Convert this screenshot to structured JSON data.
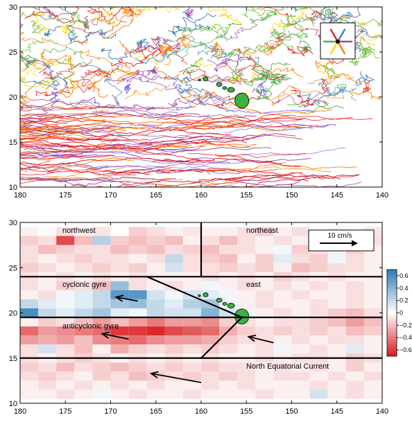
{
  "chart_data": [
    {
      "type": "line",
      "title": "",
      "xlabel": "",
      "ylabel": "",
      "xlim": [
        180,
        140
      ],
      "ylim": [
        10,
        30
      ],
      "x_ticks": [
        "180",
        "175",
        "170",
        "165",
        "160",
        "155",
        "150",
        "145",
        "140"
      ],
      "y_ticks": [
        "10",
        "15",
        "20",
        "25",
        "30"
      ],
      "description_series": "drifter trajectories colored by direction of motion",
      "direction_legend_colors": [
        "#e41a1c",
        "#377eb8",
        "#984ea3",
        "#ff7f00",
        "#ffd700",
        "#4daf4a"
      ],
      "track_color_mix": {
        "south_of_19N": [
          "#e41a1c",
          "#e41a1c",
          "#e41a1c",
          "#984ea3",
          "#7b68ee",
          "#ff7f00"
        ],
        "central": [
          "#e41a1c",
          "#377eb8",
          "#984ea3",
          "#4daf4a",
          "#ffd700",
          "#ff7f00",
          "#7b68ee"
        ],
        "north_of_23N": [
          "#377eb8",
          "#4daf4a",
          "#ffd700",
          "#ff7f00",
          "#984ea3",
          "#e41a1c",
          "#7fbf3f"
        ]
      },
      "land_color": "#3cb043"
    },
    {
      "type": "heatmap",
      "title": "",
      "xlabel": "",
      "ylabel": "",
      "xlim": [
        180,
        140
      ],
      "ylim": [
        10,
        30
      ],
      "x_ticks": [
        "180",
        "175",
        "170",
        "165",
        "160",
        "155",
        "150",
        "145",
        "140"
      ],
      "y_ticks": [
        "10",
        "15",
        "20",
        "25",
        "30"
      ],
      "colorbar": {
        "range": [
          -0.7,
          0.7
        ],
        "ticks": [
          "0.6",
          "0.4",
          "0.2",
          "0",
          "−0.2",
          "−0.4",
          "−0.6"
        ],
        "tick_values": [
          0.6,
          0.4,
          0.2,
          0,
          -0.2,
          -0.4,
          -0.6
        ],
        "negative_color": "#d7191c",
        "positive_color": "#2c7bb6"
      },
      "x_bins": [
        180,
        178,
        176,
        174,
        172,
        170,
        168,
        166,
        164,
        162,
        160,
        158,
        156,
        154,
        152,
        150,
        148,
        146,
        144,
        142,
        140
      ],
      "y_bins": [
        29,
        28,
        27,
        26,
        25,
        24,
        23,
        22,
        21,
        20,
        19,
        18,
        17,
        16,
        15,
        14,
        13,
        12,
        11
      ],
      "values": [
        [
          -0.05,
          -0.02,
          -0.1,
          -0.05,
          -0.08,
          0.0,
          -0.15,
          -0.1,
          -0.05,
          -0.08,
          -0.05,
          -0.05,
          -0.1,
          -0.15,
          -0.05,
          -0.1,
          -0.02,
          -0.05,
          -0.02,
          -0.08
        ],
        [
          -0.15,
          -0.1,
          -0.55,
          -0.2,
          0.25,
          -0.15,
          -0.2,
          -0.15,
          -0.2,
          -0.05,
          -0.1,
          -0.2,
          -0.1,
          -0.05,
          -0.1,
          -0.05,
          -0.05,
          -0.15,
          -0.05,
          -0.1
        ],
        [
          -0.1,
          -0.2,
          -0.15,
          -0.1,
          -0.1,
          -0.2,
          -0.15,
          -0.2,
          -0.1,
          -0.15,
          -0.2,
          -0.1,
          -0.1,
          -0.05,
          0.05,
          -0.15,
          -0.1,
          -0.05,
          -0.15,
          -0.05
        ],
        [
          -0.1,
          -0.05,
          -0.1,
          -0.15,
          -0.1,
          -0.1,
          -0.05,
          -0.1,
          0.2,
          -0.1,
          -0.15,
          -0.2,
          -0.05,
          -0.15,
          0.1,
          -0.1,
          -0.15,
          0.05,
          -0.1,
          -0.05
        ],
        [
          -0.15,
          -0.1,
          -0.05,
          -0.1,
          -0.15,
          -0.1,
          -0.15,
          -0.05,
          0.15,
          -0.1,
          -0.1,
          -0.15,
          -0.1,
          -0.15,
          -0.05,
          -0.2,
          -0.15,
          -0.1,
          -0.1,
          -0.05
        ],
        [
          -0.1,
          -0.05,
          -0.1,
          -0.05,
          -0.1,
          -0.05,
          -0.1,
          -0.05,
          -0.05,
          -0.05,
          -0.1,
          -0.05,
          -0.1,
          -0.05,
          -0.15,
          -0.1,
          -0.05,
          -0.1,
          -0.05,
          -0.05
        ],
        [
          -0.1,
          -0.05,
          -0.15,
          -0.1,
          -0.2,
          0.35,
          -0.1,
          -0.05,
          -0.1,
          -0.05,
          0.05,
          -0.05,
          -0.1,
          -0.05,
          -0.1,
          -0.05,
          -0.1,
          -0.05,
          -0.1,
          -0.05
        ],
        [
          -0.05,
          -0.1,
          0.05,
          0.1,
          0.2,
          0.55,
          0.55,
          0.15,
          0.05,
          0.15,
          0.1,
          0.05,
          -0.05,
          -0.1,
          -0.05,
          -0.1,
          -0.05,
          -0.05,
          -0.1,
          -0.05
        ],
        [
          0.2,
          0.1,
          0.05,
          0.1,
          0.2,
          0.3,
          0.35,
          0.2,
          0.1,
          0.25,
          0.3,
          0.05,
          -0.05,
          -0.1,
          -0.05,
          -0.05,
          -0.1,
          -0.05,
          -0.1,
          -0.05
        ],
        [
          0.6,
          0.2,
          0.1,
          0.2,
          0.3,
          0.1,
          0.05,
          0.2,
          0.15,
          0.15,
          0.4,
          0.15,
          0.05,
          -0.05,
          -0.1,
          -0.05,
          -0.1,
          -0.15,
          -0.2,
          -0.1
        ],
        [
          -0.05,
          -0.15,
          -0.1,
          -0.2,
          -0.3,
          -0.2,
          -0.3,
          -0.4,
          -0.3,
          -0.3,
          -0.35,
          -0.15,
          -0.1,
          -0.05,
          -0.1,
          -0.1,
          -0.15,
          -0.2,
          -0.3,
          -0.2
        ],
        [
          -0.45,
          -0.3,
          -0.35,
          -0.4,
          -0.45,
          -0.6,
          -0.6,
          -0.65,
          -0.55,
          -0.5,
          -0.45,
          -0.25,
          -0.15,
          -0.1,
          -0.15,
          -0.1,
          -0.15,
          -0.1,
          -0.2,
          -0.15
        ],
        [
          -0.3,
          -0.25,
          -0.3,
          -0.2,
          -0.35,
          -0.4,
          -0.45,
          -0.35,
          -0.3,
          -0.3,
          -0.25,
          -0.15,
          -0.1,
          -0.1,
          -0.05,
          -0.1,
          -0.05,
          -0.1,
          -0.1,
          -0.05
        ],
        [
          -0.1,
          0.15,
          -0.1,
          -0.2,
          -0.05,
          -0.25,
          -0.15,
          -0.1,
          -0.15,
          -0.1,
          -0.15,
          -0.1,
          -0.05,
          -0.1,
          0.05,
          -0.05,
          -0.1,
          -0.05,
          0.1,
          -0.05
        ],
        [
          -0.1,
          -0.05,
          -0.1,
          -0.15,
          -0.1,
          -0.05,
          -0.1,
          -0.05,
          -0.1,
          -0.05,
          -0.1,
          -0.05,
          -0.05,
          -0.1,
          -0.05,
          -0.1,
          -0.1,
          -0.05,
          -0.15,
          -0.1
        ],
        [
          -0.15,
          -0.1,
          -0.2,
          -0.1,
          -0.15,
          -0.2,
          -0.15,
          -0.1,
          -0.15,
          -0.1,
          -0.15,
          -0.1,
          -0.1,
          -0.05,
          -0.1,
          -0.05,
          -0.1,
          -0.05,
          -0.15,
          -0.05
        ],
        [
          -0.1,
          -0.15,
          -0.1,
          -0.05,
          -0.15,
          -0.1,
          -0.2,
          -0.15,
          -0.1,
          -0.15,
          -0.1,
          -0.15,
          -0.1,
          -0.05,
          -0.1,
          -0.1,
          -0.05,
          -0.1,
          -0.05,
          -0.1
        ],
        [
          -0.05,
          -0.1,
          -0.05,
          -0.1,
          -0.05,
          -0.1,
          -0.05,
          -0.1,
          -0.05,
          -0.05,
          -0.1,
          -0.05,
          -0.1,
          -0.05,
          -0.05,
          -0.05,
          -0.1,
          -0.05,
          -0.1,
          -0.05
        ],
        [
          -0.05,
          -0.05,
          -0.1,
          -0.05,
          0.05,
          -0.05,
          -0.1,
          -0.05,
          -0.05,
          -0.1,
          -0.05,
          -0.05,
          -0.05,
          -0.1,
          -0.05,
          -0.05,
          0.15,
          -0.05,
          -0.1,
          -0.05
        ]
      ],
      "region_labels": [
        "northwest",
        "northeast",
        "cyclonic gyre",
        "east",
        "anticyclonic gyre",
        "North Equatorial Current"
      ],
      "scale_arrow_label": "10 cm/s",
      "boundaries": {
        "horizontal_lat": [
          24,
          19.5,
          15
        ],
        "north_divider_lon": 160,
        "apex": [
          155.5,
          19.5
        ],
        "upper_diagonal_start": [
          166,
          24
        ],
        "lower_diagonal_end": [
          160,
          15
        ]
      },
      "velocity_arrows": [
        {
          "lon": 167.0,
          "lat": 21.3,
          "u_cm_s": -6.5,
          "v_cm_s": 1.2
        },
        {
          "lon": 168.0,
          "lat": 17.1,
          "u_cm_s": -8.0,
          "v_cm_s": 1.6
        },
        {
          "lon": 152.0,
          "lat": 16.7,
          "u_cm_s": -7.5,
          "v_cm_s": 1.8
        },
        {
          "lon": 160.0,
          "lat": 12.3,
          "u_cm_s": -15.0,
          "v_cm_s": 2.7
        }
      ],
      "land_color": "#3cb043"
    }
  ]
}
